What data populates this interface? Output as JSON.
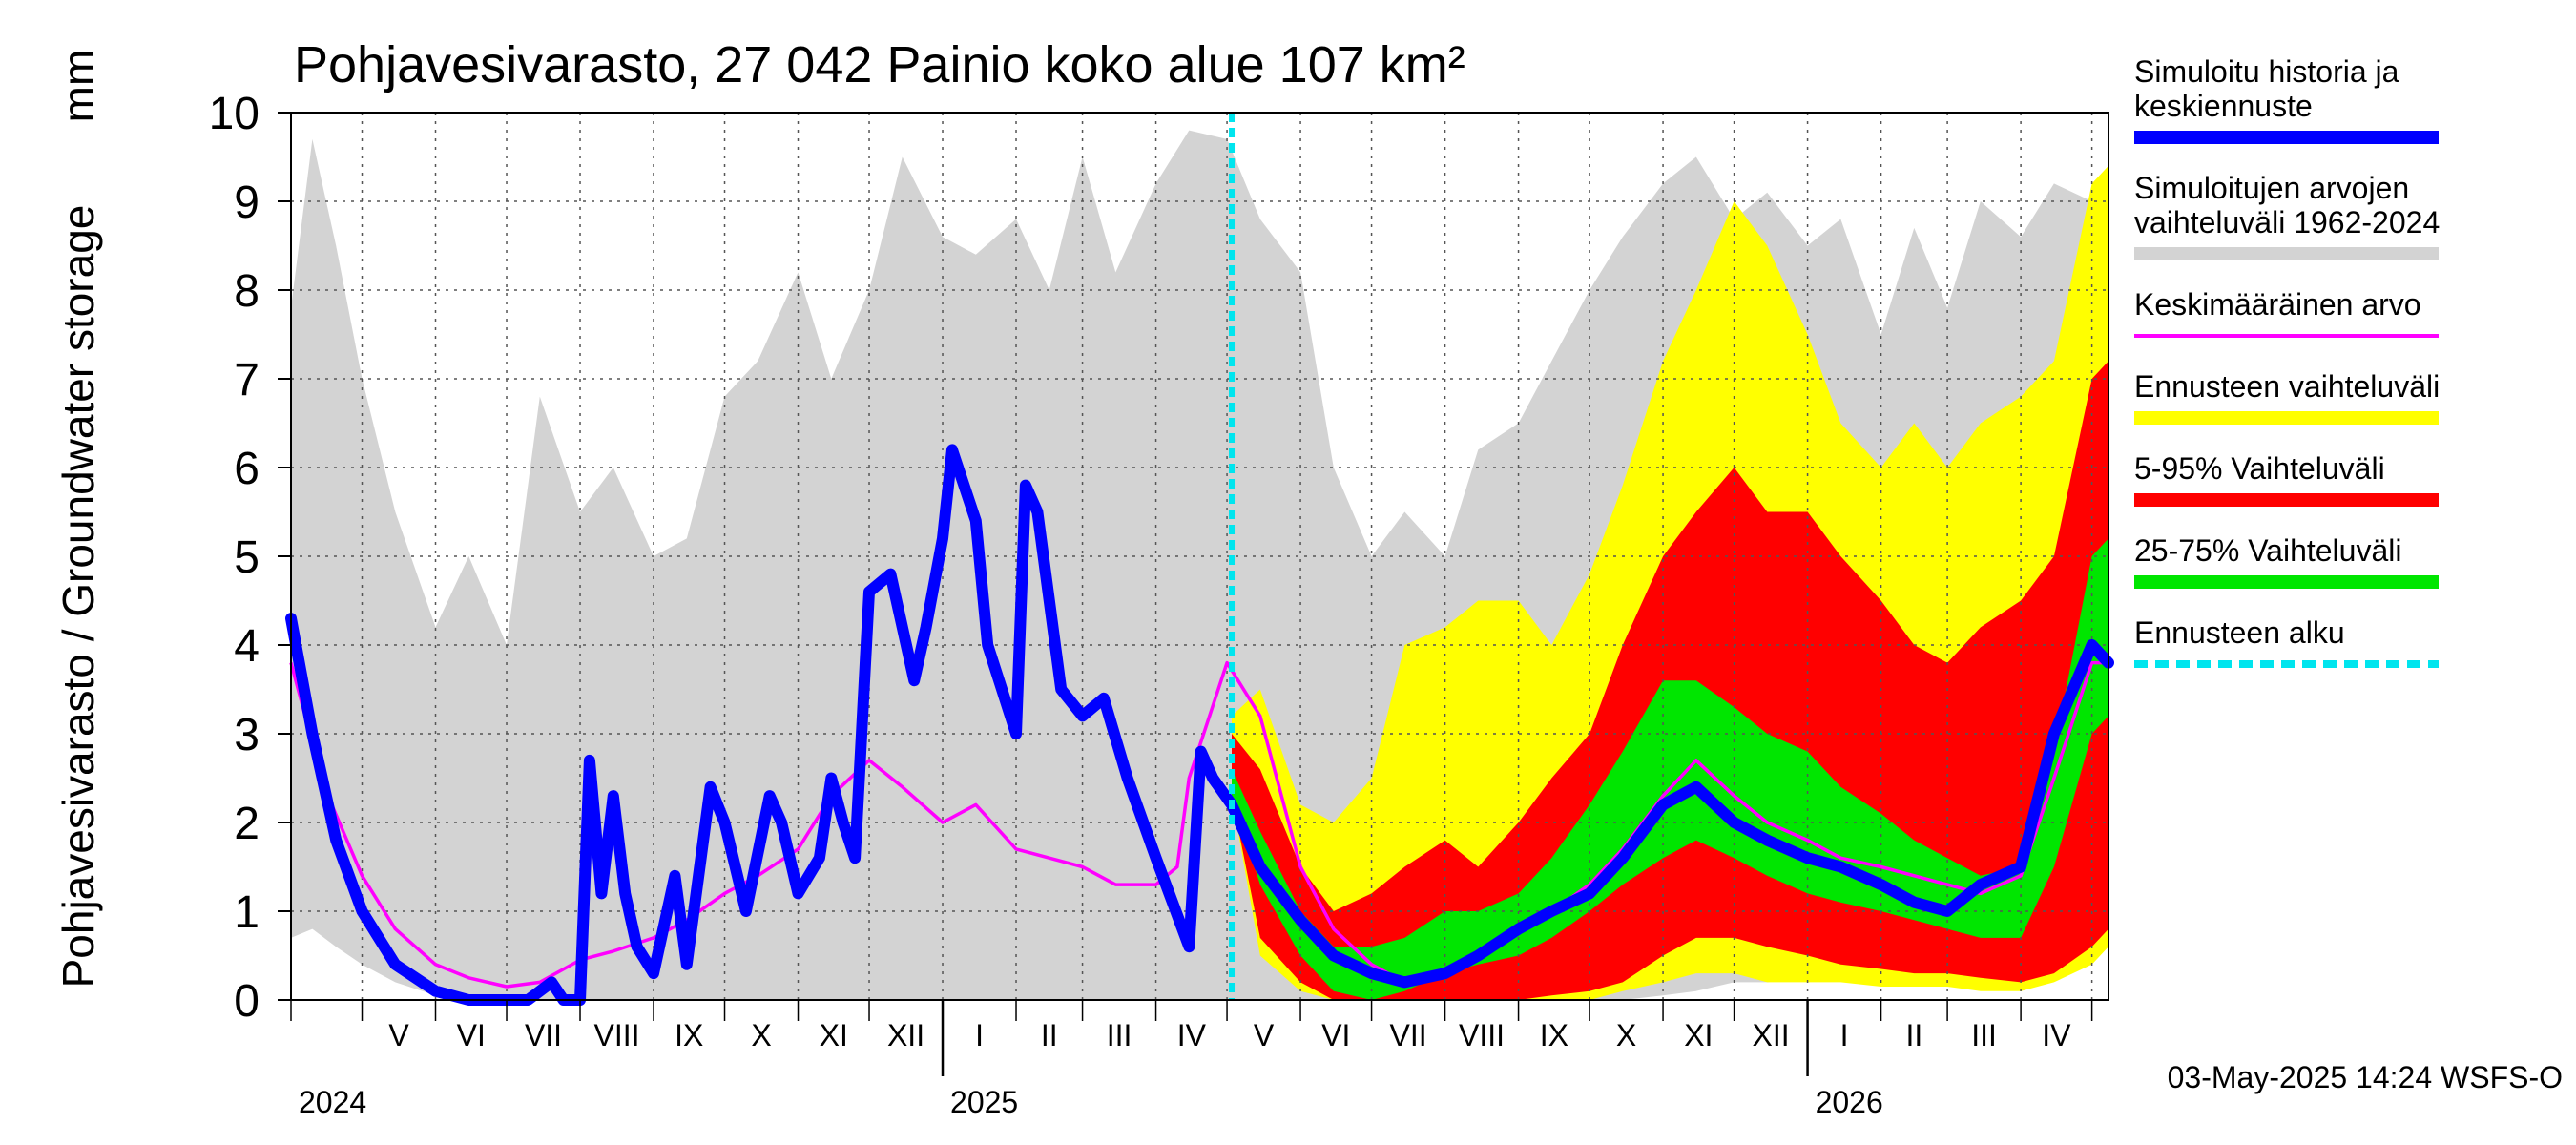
{
  "chart_data": {
    "type": "area",
    "title": "Pohjavesivarasto, 27 042 Painio koko alue 107 km²",
    "ylabel": "Pohjavesivarasto / Groundwater storage",
    "yunit": "mm",
    "ylim": [
      0,
      10
    ],
    "yticks": [
      "0",
      "1",
      "2",
      "3",
      "4",
      "5",
      "6",
      "7",
      "8",
      "9",
      "10"
    ],
    "xlim": [
      "2024-04-01",
      "2026-05-08"
    ],
    "grid": true,
    "legend_position": "right",
    "month_labels": [
      "V",
      "VI",
      "VII",
      "VIII",
      "IX",
      "X",
      "XI",
      "XII",
      "I",
      "II",
      "III",
      "IV",
      "V",
      "VI",
      "VII",
      "VIII",
      "IX",
      "X",
      "XI",
      "XII",
      "I",
      "II",
      "III",
      "IV"
    ],
    "year_labels": [
      "2024",
      "2025",
      "2026"
    ],
    "forecast_start": "2025-05-03",
    "footer": "03-May-2025 14:24 WSFS-O",
    "colors": {
      "history": "#0000ff",
      "range": "#d3d3d3",
      "mean": "#ff00ff",
      "forecast_range": "#ffff00",
      "p5_95": "#ff0000",
      "p25_75": "#00e600",
      "forecast_start": "#00e5ee"
    },
    "legend": [
      {
        "key": "history",
        "lines": [
          "Simuloitu historia ja",
          "keskiennuste"
        ],
        "style": "thick"
      },
      {
        "key": "range",
        "lines": [
          "Simuloitujen arvojen",
          "vaihteluväli 1962-2024"
        ],
        "style": "thick"
      },
      {
        "key": "mean",
        "lines": [
          "Keskimääräinen arvo"
        ],
        "style": "thin"
      },
      {
        "key": "forecast_range",
        "lines": [
          "Ennusteen vaihteluväli"
        ],
        "style": "thick"
      },
      {
        "key": "p5_95",
        "lines": [
          "5-95% Vaihteluväli"
        ],
        "style": "thick"
      },
      {
        "key": "p25_75",
        "lines": [
          "25-75% Vaihteluväli"
        ],
        "style": "thick"
      },
      {
        "key": "forecast_start",
        "lines": [
          "Ennusteen alku"
        ],
        "style": "dashed"
      }
    ],
    "series": {
      "range_band": {
        "x": [
          "2024-04-01",
          "2024-04-10",
          "2024-04-20",
          "2024-05-01",
          "2024-05-15",
          "2024-06-01",
          "2024-06-15",
          "2024-07-01",
          "2024-07-15",
          "2024-08-01",
          "2024-08-15",
          "2024-09-01",
          "2024-09-15",
          "2024-10-01",
          "2024-10-15",
          "2024-11-01",
          "2024-11-15",
          "2024-12-01",
          "2024-12-15",
          "2025-01-01",
          "2025-01-15",
          "2025-02-01",
          "2025-02-15",
          "2025-03-01",
          "2025-03-15",
          "2025-04-01",
          "2025-04-15",
          "2025-05-01",
          "2025-05-15",
          "2025-06-01",
          "2025-06-15",
          "2025-07-01",
          "2025-07-15",
          "2025-08-01",
          "2025-08-15",
          "2025-09-01",
          "2025-09-15",
          "2025-10-01",
          "2025-10-15",
          "2025-11-01",
          "2025-11-15",
          "2025-12-01",
          "2025-12-15",
          "2026-01-01",
          "2026-01-15",
          "2026-02-01",
          "2026-02-15",
          "2026-03-01",
          "2026-03-15",
          "2026-04-01",
          "2026-04-15",
          "2026-05-01",
          "2026-05-08"
        ],
        "low": [
          0.7,
          0.8,
          0.6,
          0.4,
          0.2,
          0.05,
          0,
          0,
          0,
          0,
          0,
          0,
          0,
          0,
          0,
          0,
          0,
          0,
          0,
          0,
          0,
          0,
          0,
          0,
          0,
          0,
          0,
          0,
          0,
          0,
          0,
          0,
          0,
          0,
          0,
          0,
          0,
          0,
          0,
          0.05,
          0.1,
          0.2,
          0.2,
          0.25,
          0.25,
          0.2,
          0.2,
          0.15,
          0.15,
          0.1,
          0.3,
          0.5,
          0.6
        ],
        "high": [
          7.8,
          9.7,
          8.5,
          7.0,
          5.5,
          4.2,
          5.0,
          4.0,
          6.8,
          5.5,
          6.0,
          5.0,
          5.2,
          6.8,
          7.2,
          8.2,
          7.0,
          8.0,
          9.5,
          8.6,
          8.4,
          8.8,
          8.0,
          9.5,
          8.2,
          9.2,
          9.8,
          9.7,
          8.8,
          8.2,
          6.0,
          5.0,
          5.5,
          5.0,
          6.2,
          6.5,
          7.2,
          8.0,
          8.6,
          9.2,
          9.5,
          8.8,
          9.1,
          8.5,
          8.8,
          7.5,
          8.7,
          7.8,
          9.0,
          8.6,
          9.2,
          9.0,
          9.3
        ]
      },
      "forecast_band": {
        "x": [
          "2025-05-03",
          "2025-05-15",
          "2025-06-01",
          "2025-06-15",
          "2025-07-01",
          "2025-07-15",
          "2025-08-01",
          "2025-08-15",
          "2025-09-01",
          "2025-09-15",
          "2025-10-01",
          "2025-10-15",
          "2025-11-01",
          "2025-11-15",
          "2025-12-01",
          "2025-12-15",
          "2026-01-01",
          "2026-01-15",
          "2026-02-01",
          "2026-02-15",
          "2026-03-01",
          "2026-03-15",
          "2026-04-01",
          "2026-04-15",
          "2026-05-01",
          "2026-05-08"
        ],
        "low": [
          2.3,
          0.5,
          0.1,
          0,
          0,
          0,
          0,
          0,
          0,
          0,
          0,
          0.1,
          0.2,
          0.3,
          0.3,
          0.2,
          0.2,
          0.2,
          0.15,
          0.15,
          0.15,
          0.1,
          0.1,
          0.2,
          0.4,
          0.6
        ],
        "high": [
          3.2,
          3.5,
          2.2,
          2.0,
          2.5,
          4.0,
          4.2,
          4.5,
          4.5,
          4.0,
          4.8,
          5.8,
          7.2,
          8.0,
          9.0,
          8.5,
          7.5,
          6.5,
          6.0,
          6.5,
          6.0,
          6.5,
          6.8,
          7.2,
          9.2,
          9.4
        ],
        "p5": [
          2.3,
          0.7,
          0.2,
          0,
          0,
          0,
          0,
          0,
          0,
          0.05,
          0.1,
          0.2,
          0.5,
          0.7,
          0.7,
          0.6,
          0.5,
          0.4,
          0.35,
          0.3,
          0.3,
          0.25,
          0.2,
          0.3,
          0.6,
          0.8
        ],
        "p95": [
          3.0,
          2.6,
          1.5,
          1.0,
          1.2,
          1.5,
          1.8,
          1.5,
          2.0,
          2.5,
          3.0,
          4.0,
          5.0,
          5.5,
          6.0,
          5.5,
          5.5,
          5.0,
          4.5,
          4.0,
          3.8,
          4.2,
          4.5,
          5.0,
          7.0,
          7.2
        ],
        "p25": [
          2.3,
          1.3,
          0.5,
          0.1,
          0,
          0.1,
          0.3,
          0.4,
          0.5,
          0.7,
          1.0,
          1.3,
          1.6,
          1.8,
          1.6,
          1.4,
          1.2,
          1.1,
          1.0,
          0.9,
          0.8,
          0.7,
          0.7,
          1.5,
          3.0,
          3.2
        ],
        "p75": [
          2.6,
          1.9,
          1.0,
          0.6,
          0.6,
          0.7,
          1.0,
          1.0,
          1.2,
          1.6,
          2.2,
          2.8,
          3.6,
          3.6,
          3.3,
          3.0,
          2.8,
          2.4,
          2.1,
          1.8,
          1.6,
          1.4,
          1.5,
          2.8,
          5.0,
          5.2
        ]
      },
      "history": {
        "x": [
          "2024-04-01",
          "2024-04-10",
          "2024-04-20",
          "2024-05-01",
          "2024-05-15",
          "2024-06-01",
          "2024-06-15",
          "2024-06-25",
          "2024-07-10",
          "2024-07-20",
          "2024-07-25",
          "2024-08-01",
          "2024-08-05",
          "2024-08-10",
          "2024-08-15",
          "2024-08-20",
          "2024-08-25",
          "2024-09-01",
          "2024-09-10",
          "2024-09-15",
          "2024-09-25",
          "2024-10-01",
          "2024-10-10",
          "2024-10-20",
          "2024-10-25",
          "2024-11-01",
          "2024-11-10",
          "2024-11-15",
          "2024-11-20",
          "2024-11-25",
          "2024-12-01",
          "2024-12-10",
          "2024-12-20",
          "2024-12-25",
          "2025-01-01",
          "2025-01-05",
          "2025-01-15",
          "2025-01-20",
          "2025-02-01",
          "2025-02-05",
          "2025-02-10",
          "2025-02-20",
          "2025-03-01",
          "2025-03-10",
          "2025-03-20",
          "2025-04-01",
          "2025-04-15",
          "2025-04-20",
          "2025-04-25",
          "2025-05-03",
          "2025-05-15",
          "2025-06-01",
          "2025-06-15",
          "2025-07-01",
          "2025-07-15",
          "2025-08-01",
          "2025-08-15",
          "2025-09-01",
          "2025-09-15",
          "2025-10-01",
          "2025-10-15",
          "2025-11-01",
          "2025-11-15",
          "2025-12-01",
          "2025-12-15",
          "2026-01-01",
          "2026-01-15",
          "2026-02-01",
          "2026-02-15",
          "2026-03-01",
          "2026-03-15",
          "2026-04-01",
          "2026-04-15",
          "2026-05-01",
          "2026-05-08"
        ],
        "y": [
          4.3,
          3.0,
          1.8,
          1.0,
          0.4,
          0.1,
          0,
          0,
          0,
          0.2,
          0,
          0,
          2.7,
          1.2,
          2.3,
          1.2,
          0.6,
          0.3,
          1.4,
          0.4,
          2.4,
          2.0,
          1.0,
          2.3,
          2.0,
          1.2,
          1.6,
          2.5,
          2.0,
          1.6,
          4.6,
          4.8,
          3.6,
          4.2,
          5.2,
          6.2,
          5.4,
          4.0,
          3.0,
          5.8,
          5.5,
          3.5,
          3.2,
          3.4,
          2.5,
          1.6,
          0.6,
          2.8,
          2.5,
          2.2,
          1.5,
          0.9,
          0.5,
          0.3,
          0.2,
          0.3,
          0.5,
          0.8,
          1.0,
          1.2,
          1.6,
          2.2,
          2.4,
          2.0,
          1.8,
          1.6,
          1.5,
          1.3,
          1.1,
          1.0,
          1.3,
          1.5,
          3.0,
          4.0,
          3.8
        ]
      },
      "mean": {
        "x": [
          "2024-04-01",
          "2024-04-15",
          "2024-05-01",
          "2024-05-15",
          "2024-06-01",
          "2024-06-15",
          "2024-07-01",
          "2024-07-15",
          "2024-08-01",
          "2024-08-15",
          "2024-09-01",
          "2024-09-15",
          "2024-10-01",
          "2024-10-15",
          "2024-11-01",
          "2024-11-15",
          "2024-12-01",
          "2024-12-15",
          "2025-01-01",
          "2025-01-15",
          "2025-02-01",
          "2025-02-15",
          "2025-03-01",
          "2025-03-15",
          "2025-04-01",
          "2025-04-10",
          "2025-04-15",
          "2025-05-01",
          "2025-05-15",
          "2025-06-01",
          "2025-06-15",
          "2025-07-01",
          "2025-07-15",
          "2025-08-01",
          "2025-08-15",
          "2025-09-01",
          "2025-09-15",
          "2025-10-01",
          "2025-10-15",
          "2025-11-01",
          "2025-11-15",
          "2025-12-01",
          "2025-12-15",
          "2026-01-01",
          "2026-01-15",
          "2026-02-01",
          "2026-02-15",
          "2026-03-01",
          "2026-03-15",
          "2026-04-01",
          "2026-04-15",
          "2026-05-01",
          "2026-05-08"
        ],
        "y": [
          3.8,
          2.4,
          1.4,
          0.8,
          0.4,
          0.25,
          0.15,
          0.2,
          0.45,
          0.55,
          0.7,
          0.9,
          1.2,
          1.4,
          1.7,
          2.3,
          2.7,
          2.4,
          2.0,
          2.2,
          1.7,
          1.6,
          1.5,
          1.3,
          1.3,
          1.5,
          2.5,
          3.8,
          3.2,
          1.5,
          0.8,
          0.4,
          0.2,
          0.3,
          0.5,
          0.8,
          1.0,
          1.3,
          1.7,
          2.3,
          2.7,
          2.3,
          2.0,
          1.8,
          1.6,
          1.5,
          1.4,
          1.3,
          1.2,
          1.4,
          2.5,
          3.8,
          3.8
        ]
      }
    }
  }
}
